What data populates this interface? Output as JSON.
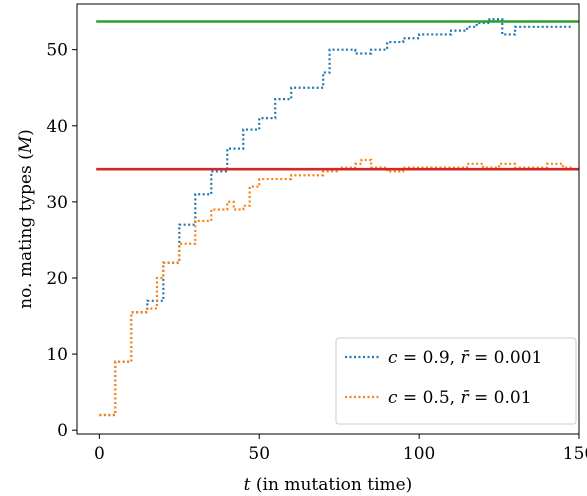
{
  "chart_data": {
    "type": "line",
    "xlabel_var": "t",
    "xlabel_rest": " (in mutation time)",
    "ylabel_main": "no. mating types (",
    "ylabel_var": "M",
    "ylabel_end": ")",
    "xlim": [
      -7,
      150
    ],
    "ylim": [
      -0.5,
      56
    ],
    "xticks": [
      0,
      50,
      100,
      150
    ],
    "yticks": [
      0,
      10,
      20,
      30,
      40,
      50
    ],
    "grid": false,
    "legend_position": "lower-right",
    "series": [
      {
        "name": "c = 0.9, r̄ = 0.001",
        "legend_c": "0.9",
        "legend_r": "0.001",
        "color": "#1f77b4",
        "style": "dotted",
        "x": [
          0,
          5,
          10,
          15,
          20,
          25,
          30,
          35,
          40,
          45,
          50,
          55,
          60,
          65,
          70,
          72,
          74,
          76,
          80,
          85,
          90,
          95,
          100,
          105,
          110,
          115,
          118,
          122,
          126,
          130,
          135,
          140,
          145,
          148
        ],
        "y": [
          2,
          9,
          15.5,
          17,
          22,
          27,
          31,
          34,
          37,
          39.5,
          41,
          43.5,
          45,
          45,
          47,
          50,
          50,
          50,
          49.5,
          50,
          51,
          51.5,
          52,
          52,
          52.5,
          53,
          53.5,
          54,
          52,
          53,
          53,
          53,
          53,
          53
        ]
      },
      {
        "name": "c = 0.5, r̄ = 0.01",
        "legend_c": "0.5",
        "legend_r": "0.01",
        "color": "#ff7f0e",
        "style": "dotted",
        "x": [
          0,
          5,
          10,
          15,
          18,
          20,
          25,
          30,
          35,
          40,
          42,
          45,
          47,
          50,
          55,
          60,
          65,
          70,
          75,
          80,
          82,
          85,
          90,
          95,
          100,
          105,
          110,
          115,
          120,
          125,
          130,
          135,
          140,
          145,
          148
        ],
        "y": [
          2,
          9,
          15.5,
          16,
          20,
          22,
          24.5,
          27.5,
          29,
          30,
          29,
          29.5,
          32,
          33,
          33,
          33.5,
          33.5,
          34,
          34.5,
          35,
          35.5,
          34.5,
          34,
          34.5,
          34.5,
          34.5,
          34.5,
          35,
          34.5,
          35,
          34.5,
          34.5,
          35,
          34.5,
          34.5
        ]
      }
    ],
    "reference_lines": [
      {
        "color": "#2ca02c",
        "y": 53.7,
        "x_from": -1,
        "x_to": 150
      },
      {
        "color": "#d62728",
        "y": 34.3,
        "x_from": -1,
        "x_to": 150
      }
    ]
  }
}
